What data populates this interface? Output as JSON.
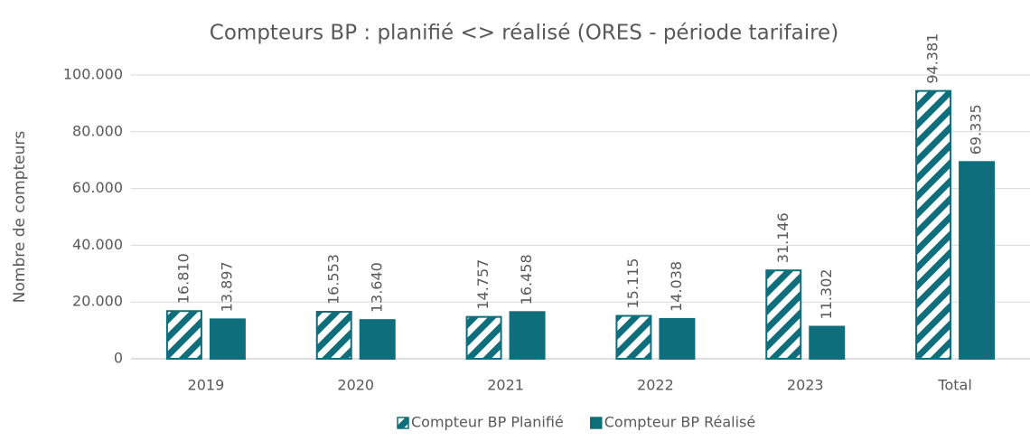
{
  "chart_data": {
    "type": "bar",
    "title": "Compteurs BP : planifié <> réalisé (ORES - période tarifaire)",
    "y_label": "Nombre de compteurs",
    "categories": [
      "2019",
      "2020",
      "2021",
      "2022",
      "2023",
      "Total"
    ],
    "series": [
      {
        "name": "Compteur BP Planifié",
        "color": "#0e6e7b",
        "hatch": true,
        "values": [
          16810,
          16553,
          14757,
          15115,
          31146,
          94381
        ],
        "value_labels": [
          "16.810",
          "16.553",
          "14.757",
          "15.115",
          "31.146",
          "94.381"
        ]
      },
      {
        "name": "Compteur BP Réalisé",
        "color": "#0e6e7b",
        "hatch": false,
        "values": [
          13897,
          13640,
          16458,
          14038,
          11302,
          69335
        ],
        "value_labels": [
          "13.897",
          "13.640",
          "16.458",
          "14.038",
          "11.302",
          "69.335"
        ]
      }
    ],
    "ylim": [
      0,
      100000
    ],
    "yticks": [
      0,
      {
        "value": 20000,
        "label": "20.000"
      },
      {
        "value": 40000,
        "label": "40.000"
      },
      {
        "value": 60000,
        "label": "60.000"
      },
      {
        "value": 80000,
        "label": "80.000"
      },
      {
        "value": 100000,
        "label": "100.000"
      }
    ],
    "grid": true,
    "legend": "bottom"
  }
}
